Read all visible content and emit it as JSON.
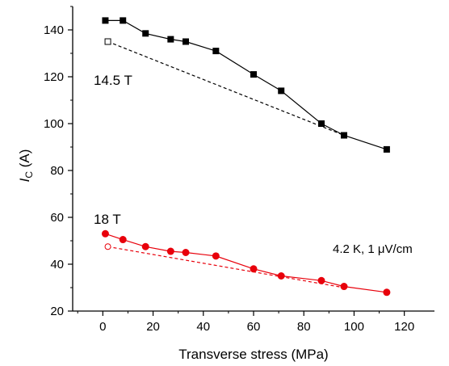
{
  "chart_data": {
    "type": "line",
    "xlabel": "Transverse stress (MPa)",
    "ylabel_main": "I",
    "ylabel_sub": "C",
    "ylabel_unit": " (A)",
    "xlim": [
      -12,
      132
    ],
    "ylim": [
      20,
      150
    ],
    "xticks": [
      0,
      20,
      40,
      60,
      80,
      100,
      120
    ],
    "yticks": [
      20,
      40,
      60,
      80,
      100,
      120,
      140
    ],
    "annotations": {
      "field_high": "14.5 T",
      "field_low": "18 T",
      "condition_prefix": "4.2 K, 1 ",
      "condition_mu": "μ",
      "condition_suffix": "V/cm"
    },
    "series": [
      {
        "marker": "square-filled",
        "color": "#000000",
        "line": "solid",
        "x": [
          1,
          8,
          17,
          27,
          33,
          45,
          60,
          71,
          87,
          96,
          113
        ],
        "y": [
          144,
          144,
          138.5,
          136,
          135,
          131,
          121,
          114,
          100,
          95,
          89
        ]
      },
      {
        "marker": "square-open",
        "color": "#000000",
        "line": "dashed",
        "x": [
          2,
          96
        ],
        "y": [
          135,
          95
        ]
      },
      {
        "marker": "circle-filled",
        "color": "#e8000b",
        "line": "solid",
        "x": [
          1,
          8,
          17,
          27,
          33,
          45,
          60,
          71,
          87,
          96,
          113
        ],
        "y": [
          53,
          50.5,
          47.5,
          45.5,
          45,
          43.5,
          38,
          35,
          33,
          30.5,
          28
        ]
      },
      {
        "marker": "circle-open",
        "color": "#e8000b",
        "line": "dashed",
        "x": [
          2,
          96
        ],
        "y": [
          47.5,
          30
        ]
      }
    ]
  }
}
